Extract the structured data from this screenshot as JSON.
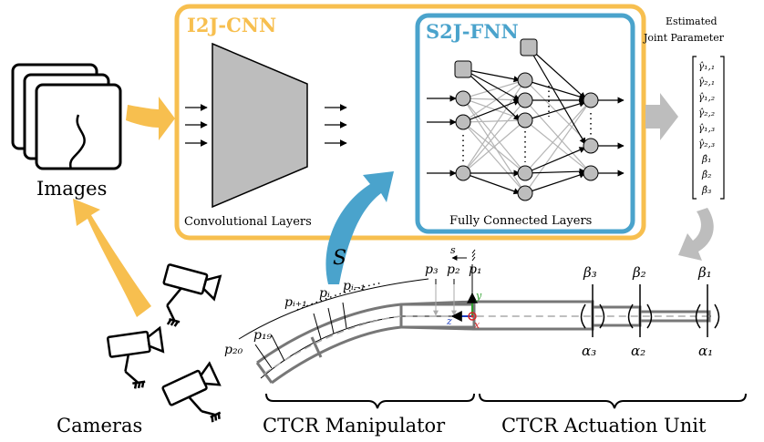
{
  "i2j": {
    "title": "I2J-CNN",
    "conv_label": "Convolutional Layers",
    "color": "#f7bf4f"
  },
  "s2j": {
    "title": "S2J-FNN",
    "fc_label": "Fully Connected Layers",
    "color": "#4aa3cc"
  },
  "output": {
    "heading_line1": "Estimated",
    "heading_line2": "Joint Parameter",
    "entries": [
      "γ̂₁,₁",
      "γ̂₂,₁",
      "γ̂₁,₂",
      "γ̂₂,₂",
      "γ̂₁,₃",
      "γ̂₂,₃",
      "β̂₁",
      "β̂₂",
      "β̂₃"
    ]
  },
  "labels": {
    "images": "Images",
    "cameras": "Cameras",
    "shape": "S",
    "manipulator": "CTCR Manipulator",
    "actuation": "CTCR Actuation Unit",
    "s_axis": "s",
    "points": [
      "p₂₀",
      "p₁₉",
      "pᵢ₊₁",
      "pᵢ",
      "pᵢ₋₁",
      "p₃",
      "p₂",
      "p₁"
    ],
    "betas": [
      "β₃",
      "β₂",
      "β₁"
    ],
    "alphas": [
      "α₃",
      "α₂",
      "α₁"
    ],
    "frame_axes": [
      "y",
      "z",
      "x"
    ]
  },
  "colors": {
    "arrow_gray": "#bdbdbd",
    "tube_gray": "#777777"
  }
}
